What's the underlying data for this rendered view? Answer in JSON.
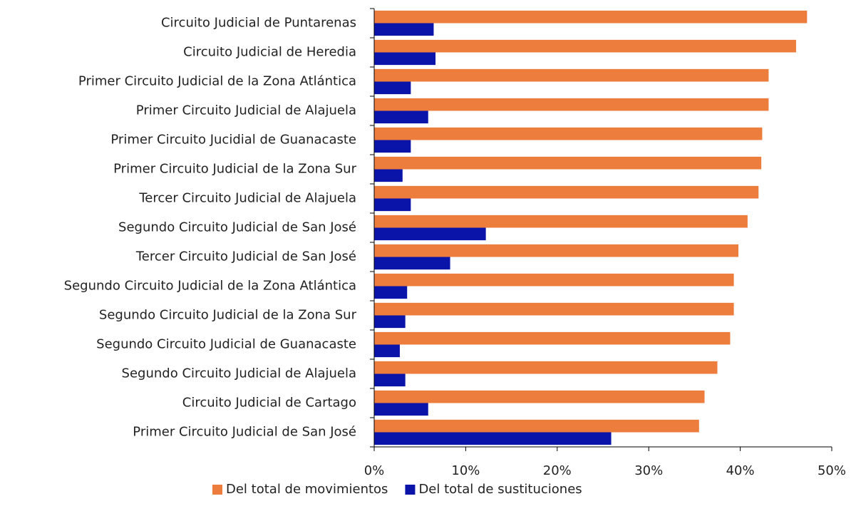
{
  "chart_data": {
    "type": "hbar",
    "categories": [
      "Circuito Judicial de Puntarenas",
      "Circuito Judicial de Heredia",
      "Primer Circuito Judicial de la Zona Atlántica",
      "Primer Circuito Judicial de Alajuela",
      "Primer Circuito Jucidial de Guanacaste",
      "Primer Circuito Judicial de la Zona Sur",
      "Tercer Circuito Judicial de Alajuela",
      "Segundo Circuito Judicial de San José",
      "Tercer Circuito Judicial de San José",
      "Segundo Circuito Judicial de la Zona Atlántica",
      "Segundo Circuito Judicial de la Zona Sur",
      "Segundo Circuito Judicial de Guanacaste",
      "Segundo Circuito Judicial de Alajuela",
      "Circuito Judicial de Cartago",
      "Primer Circuito Judicial de San José"
    ],
    "series": [
      {
        "name": "Del total de movimientos",
        "color": "#ed7d3d",
        "values": [
          47.3,
          46.1,
          43.1,
          43.1,
          42.4,
          42.3,
          42.0,
          40.8,
          39.8,
          39.3,
          39.3,
          38.9,
          37.5,
          36.1,
          35.5
        ]
      },
      {
        "name": "Del total de sustituciones",
        "color": "#0a14a8",
        "values": [
          6.5,
          6.7,
          4.0,
          5.9,
          4.0,
          3.1,
          4.0,
          12.2,
          8.3,
          3.6,
          3.4,
          2.8,
          3.4,
          5.9,
          25.9
        ]
      }
    ],
    "xlim": [
      0,
      50
    ],
    "xticks": [
      {
        "value": 0,
        "label": "0%"
      },
      {
        "value": 10,
        "label": "10%"
      },
      {
        "value": 20,
        "label": "20%"
      },
      {
        "value": 30,
        "label": "30%"
      },
      {
        "value": 40,
        "label": "40%"
      },
      {
        "value": 50,
        "label": "50%"
      }
    ],
    "legend": "bottom"
  }
}
